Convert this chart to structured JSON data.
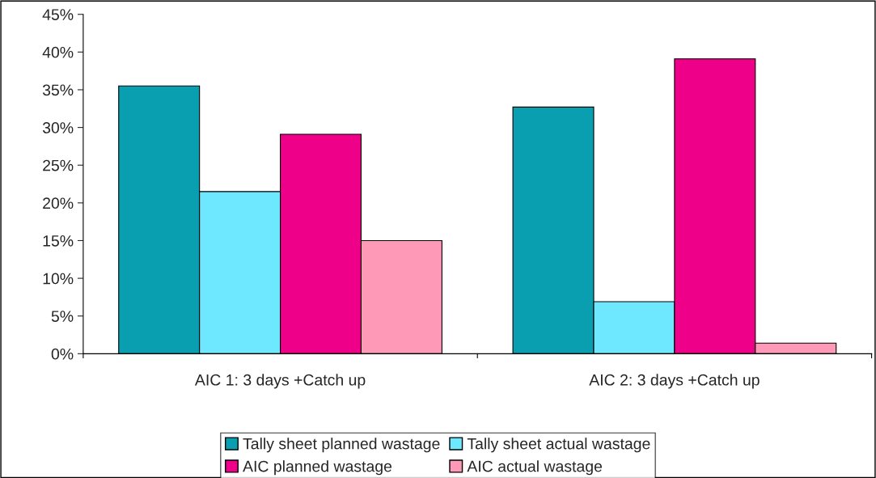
{
  "chart_data": {
    "type": "bar",
    "categories": [
      "AIC 1: 3 days +Catch up",
      "AIC 2: 3 days +Catch up"
    ],
    "series": [
      {
        "name": "Tally sheet planned wastage",
        "color": "#0a9fb0",
        "values": [
          35.5,
          32.7
        ]
      },
      {
        "name": "Tally sheet actual wastage",
        "color": "#6ee8ff",
        "values": [
          21.5,
          6.9
        ]
      },
      {
        "name": "AIC planned wastage",
        "color": "#ee0088",
        "values": [
          29.1,
          39.1
        ]
      },
      {
        "name": "AIC actual wastage",
        "color": "#ff99b8",
        "values": [
          15.0,
          1.4
        ]
      }
    ],
    "ylim": [
      0,
      45
    ],
    "yticks": [
      {
        "value": 0,
        "label": "0%"
      },
      {
        "value": 5,
        "label": "5%"
      },
      {
        "value": 10,
        "label": "10%"
      },
      {
        "value": 15,
        "label": "15%"
      },
      {
        "value": 20,
        "label": "20%"
      },
      {
        "value": 25,
        "label": "25%"
      },
      {
        "value": 30,
        "label": "30%"
      },
      {
        "value": 35,
        "label": "35%"
      },
      {
        "value": 40,
        "label": "40%"
      },
      {
        "value": 45,
        "label": "45%"
      }
    ],
    "grid": false,
    "legend": "bottom"
  }
}
